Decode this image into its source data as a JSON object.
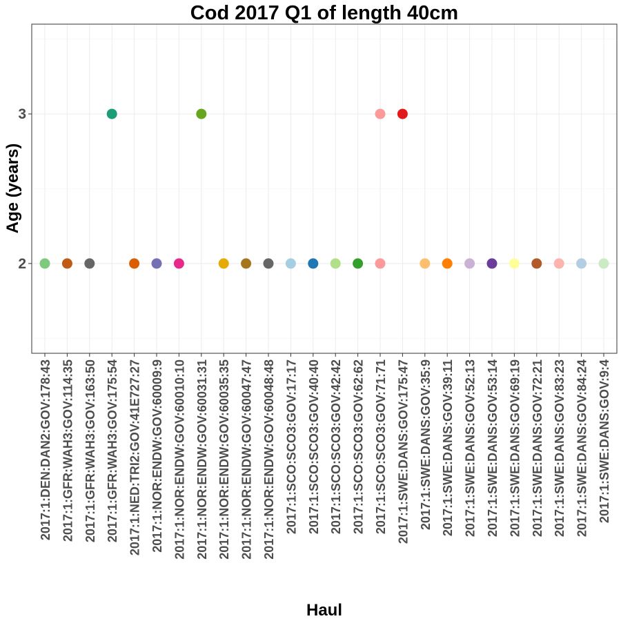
{
  "chart_data": {
    "type": "scatter",
    "title": "Cod 2017 Q1 of length 40cm",
    "xlabel": "Haul",
    "ylabel": "Age (years)",
    "yticks": [
      2,
      3
    ],
    "ylim": [
      1.4,
      3.6
    ],
    "grid": true,
    "legend": "none",
    "points": [
      {
        "x": "2017:1:DEN:DAN2:GOV:178:43",
        "y": 2,
        "color": "#7fc97f"
      },
      {
        "x": "2017:1:GFR:WAH3:GOV:114:35",
        "y": 2,
        "color": "#bf5b17"
      },
      {
        "x": "2017:1:GFR:WAH3:GOV:163:50",
        "y": 2,
        "color": "#666666"
      },
      {
        "x": "2017:1:GFR:WAH3:GOV:175:54",
        "y": 3,
        "color": "#1b9e77"
      },
      {
        "x": "2017:1:NED:TRI2:GOV:41E727:27",
        "y": 2,
        "color": "#d95f02"
      },
      {
        "x": "2017:1:NOR:ENDW:GOV:60009:9",
        "y": 2,
        "color": "#7570b3"
      },
      {
        "x": "2017:1:NOR:ENDW:GOV:60010:10",
        "y": 2,
        "color": "#e7298a"
      },
      {
        "x": "2017:1:NOR:ENDW:GOV:60031:31",
        "y": 3,
        "color": "#66a61e"
      },
      {
        "x": "2017:1:NOR:ENDW:GOV:60035:35",
        "y": 2,
        "color": "#e6ab02"
      },
      {
        "x": "2017:1:NOR:ENDW:GOV:60047:47",
        "y": 2,
        "color": "#a6761d"
      },
      {
        "x": "2017:1:NOR:ENDW:GOV:60048:48",
        "y": 2,
        "color": "#666666"
      },
      {
        "x": "2017:1:SCO:SCO3:GOV:17:17",
        "y": 2,
        "color": "#a6cee3"
      },
      {
        "x": "2017:1:SCO:SCO3:GOV:40:40",
        "y": 2,
        "color": "#1f78b4"
      },
      {
        "x": "2017:1:SCO:SCO3:GOV:42:42",
        "y": 2,
        "color": "#b2df8a"
      },
      {
        "x": "2017:1:SCO:SCO3:GOV:62:62",
        "y": 2,
        "color": "#33a02c"
      },
      {
        "x": "2017:1:SCO:SCO3:GOV:71:71",
        "y": 2,
        "color": "#fb9a99"
      },
      {
        "x": "2017:1:SCO:SCO3:GOV:71:71",
        "y": 3,
        "color": "#fb9a99"
      },
      {
        "x": "2017:1:SWE:DANS:GOV:175:47",
        "y": 3,
        "color": "#e31a1c"
      },
      {
        "x": "2017:1:SWE:DANS:GOV:35:9",
        "y": 2,
        "color": "#fdbf6f"
      },
      {
        "x": "2017:1:SWE:DANS:GOV:39:11",
        "y": 2,
        "color": "#ff7f00"
      },
      {
        "x": "2017:1:SWE:DANS:GOV:52:13",
        "y": 2,
        "color": "#cab2d6"
      },
      {
        "x": "2017:1:SWE:DANS:GOV:53:14",
        "y": 2,
        "color": "#6a3d9a"
      },
      {
        "x": "2017:1:SWE:DANS:GOV:69:19",
        "y": 2,
        "color": "#ffff99"
      },
      {
        "x": "2017:1:SWE:DANS:GOV:72:21",
        "y": 2,
        "color": "#b15928"
      },
      {
        "x": "2017:1:SWE:DANS:GOV:83:23",
        "y": 2,
        "color": "#fbb4ae"
      },
      {
        "x": "2017:1:SWE:DANS:GOV:84:24",
        "y": 2,
        "color": "#b3cde3"
      },
      {
        "x": "2017:1:SWE:DANS:GOV:9:4",
        "y": 2,
        "color": "#ccebc5"
      }
    ]
  }
}
